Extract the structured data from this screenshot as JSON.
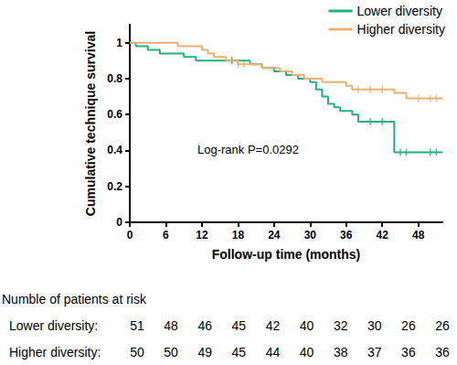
{
  "chart_data": {
    "type": "step",
    "ylabel": "Cumulative technique survival",
    "xlabel": "Follow-up time (months)",
    "xlim": [
      0,
      52
    ],
    "xticks": [
      0,
      6,
      12,
      18,
      24,
      30,
      36,
      42,
      48
    ],
    "ylim": [
      0,
      1.1
    ],
    "yticks": [
      0,
      0.2,
      0.4,
      0.6,
      0.8,
      1
    ],
    "grid": false,
    "legend": "upper right",
    "annotations": [
      "Log-rank P=0.0292"
    ],
    "series": [
      {
        "name": "Lower diversity",
        "color": "#22b07d",
        "marker": "tick",
        "x": [
          0,
          1,
          3,
          5,
          9,
          11,
          20,
          22,
          24,
          26,
          28,
          30,
          31,
          32,
          33,
          34,
          35,
          37,
          38,
          44,
          52
        ],
        "values": [
          1,
          0.98,
          0.96,
          0.94,
          0.92,
          0.9,
          0.88,
          0.86,
          0.84,
          0.82,
          0.8,
          0.78,
          0.74,
          0.7,
          0.66,
          0.64,
          0.62,
          0.6,
          0.56,
          0.39,
          0.39
        ],
        "censored_x": [
          17,
          40,
          42,
          45,
          46,
          50,
          51
        ],
        "censored_values": [
          0.9,
          0.56,
          0.56,
          0.39,
          0.39,
          0.39,
          0.39
        ]
      },
      {
        "name": "Higher diversity",
        "color": "#f0b070",
        "marker": "tick",
        "x": [
          0,
          8,
          12,
          13,
          14,
          16,
          18,
          22,
          25,
          27,
          29,
          32,
          36,
          37,
          44,
          46,
          52
        ],
        "values": [
          1,
          0.98,
          0.96,
          0.94,
          0.92,
          0.9,
          0.88,
          0.86,
          0.84,
          0.82,
          0.8,
          0.78,
          0.76,
          0.74,
          0.72,
          0.69,
          0.69
        ],
        "censored_x": [
          18,
          19,
          38,
          40,
          42,
          48,
          50,
          51
        ],
        "censored_values": [
          0.88,
          0.88,
          0.74,
          0.74,
          0.74,
          0.69,
          0.69,
          0.69
        ]
      }
    ],
    "at_risk": {
      "title": "Numble of patients at risk",
      "rows": [
        {
          "label": "Lower diversity:",
          "values": [
            51,
            48,
            46,
            45,
            42,
            40,
            32,
            30,
            26,
            26
          ]
        },
        {
          "label": "Higher diversity:",
          "values": [
            50,
            50,
            49,
            45,
            44,
            40,
            38,
            37,
            36,
            36
          ]
        }
      ]
    }
  }
}
